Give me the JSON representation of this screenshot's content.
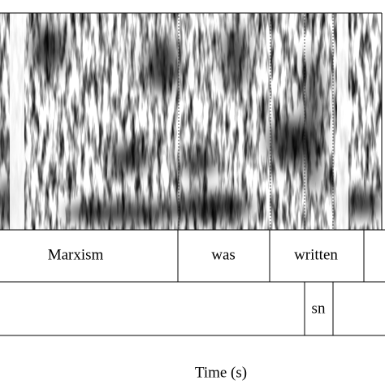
{
  "tiers": [
    {
      "intervals": [
        {
          "label": "Marxism"
        },
        {
          "label": "was"
        },
        {
          "label": "written"
        }
      ]
    },
    {
      "intervals": [
        {
          "label": "sn"
        }
      ]
    }
  ],
  "x_axis_label": "Time (s)"
}
